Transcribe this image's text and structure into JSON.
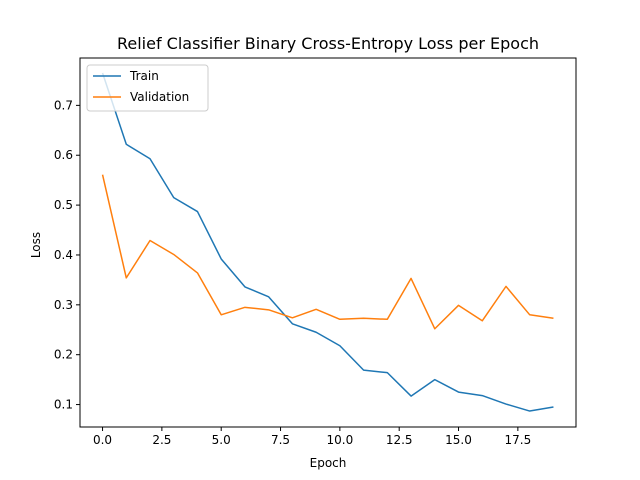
{
  "chart_data": {
    "type": "line",
    "title": "Relief Classifier Binary Cross-Entropy Loss per Epoch",
    "xlabel": "Epoch",
    "ylabel": "Loss",
    "xlim": [
      -0.95,
      19.95
    ],
    "ylim": [
      0.055,
      0.795
    ],
    "xticks": [
      0,
      2.5,
      5,
      7.5,
      10,
      12.5,
      15,
      17.5
    ],
    "xtick_labels": [
      "0.0",
      "2.5",
      "5.0",
      "7.5",
      "10.0",
      "12.5",
      "15.0",
      "17.5"
    ],
    "yticks": [
      0.1,
      0.2,
      0.3,
      0.4,
      0.5,
      0.6,
      0.7
    ],
    "ytick_labels": [
      "0.1",
      "0.2",
      "0.3",
      "0.4",
      "0.5",
      "0.6",
      "0.7"
    ],
    "grid": false,
    "legend_position": "top-left",
    "x": [
      0,
      1,
      2,
      3,
      4,
      5,
      6,
      7,
      8,
      9,
      10,
      11,
      12,
      13,
      14,
      15,
      16,
      17,
      18,
      19
    ],
    "series": [
      {
        "name": "Train",
        "color": "#1f77b4",
        "values": [
          0.765,
          0.622,
          0.593,
          0.515,
          0.487,
          0.392,
          0.336,
          0.316,
          0.262,
          0.245,
          0.218,
          0.169,
          0.164,
          0.117,
          0.15,
          0.125,
          0.118,
          0.101,
          0.087,
          0.095
        ]
      },
      {
        "name": "Validation",
        "color": "#ff7f0e",
        "values": [
          0.561,
          0.354,
          0.429,
          0.401,
          0.364,
          0.28,
          0.295,
          0.29,
          0.274,
          0.291,
          0.271,
          0.273,
          0.271,
          0.353,
          0.252,
          0.299,
          0.268,
          0.337,
          0.28,
          0.273
        ]
      }
    ]
  }
}
